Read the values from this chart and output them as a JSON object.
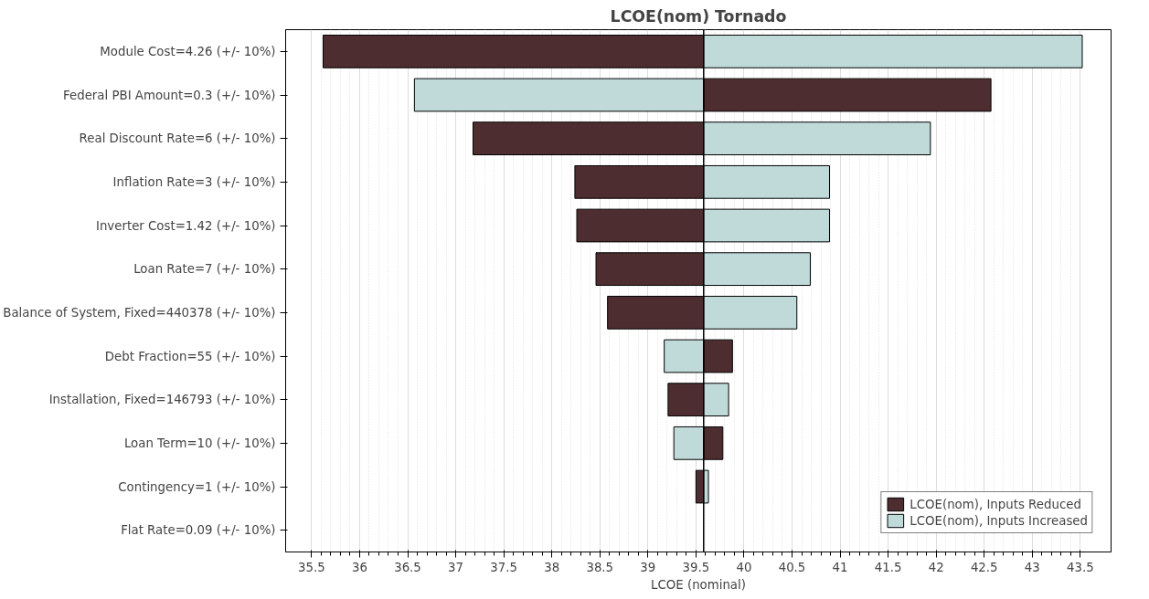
{
  "chart_data": {
    "type": "bar",
    "orientation": "horizontal",
    "title": "LCOE(nom) Tornado",
    "xlabel": "LCOE (nominal)",
    "categories": [
      "Module Cost=4.26 (+/- 10%)",
      "Federal PBI Amount=0.3 (+/- 10%)",
      "Real Discount Rate=6 (+/- 10%)",
      "Inflation Rate=3 (+/- 10%)",
      "Inverter Cost=1.42 (+/- 10%)",
      "Loan Rate=7 (+/- 10%)",
      "Balance of System, Fixed=440378 (+/- 10%)",
      "Debt Fraction=55 (+/- 10%)",
      "Installation, Fixed=146793 (+/- 10%)",
      "Loan Term=10 (+/- 10%)",
      "Contingency=1 (+/- 10%)",
      "Flat Rate=0.09 (+/- 10%)"
    ],
    "series": [
      {
        "name": "LCOE(nom), Inputs Reduced",
        "color": "#4e2d30",
        "base": [
          39.58,
          39.58,
          39.58,
          39.58,
          39.58,
          39.58,
          39.58,
          39.58,
          39.58,
          39.58,
          39.58,
          null
        ],
        "values": [
          -3.96,
          2.99,
          -2.4,
          -1.34,
          -1.32,
          -1.12,
          -1.0,
          0.3,
          -0.37,
          0.2,
          -0.08,
          null
        ]
      },
      {
        "name": "LCOE(nom), Inputs Increased",
        "color": "#c0dad9",
        "base": [
          39.58,
          39.58,
          39.58,
          39.58,
          39.58,
          39.58,
          39.58,
          39.58,
          39.58,
          39.58,
          39.58,
          null
        ],
        "values": [
          3.94,
          -3.01,
          2.36,
          1.31,
          1.31,
          1.11,
          0.97,
          -0.41,
          0.26,
          -0.31,
          0.05,
          null
        ]
      }
    ],
    "ref_lines": [
      {
        "axis": "x",
        "value": 39.58,
        "color": "#000000"
      }
    ],
    "xlim": [
      35.23,
      43.82
    ],
    "xticks": [
      35.5,
      36,
      36.5,
      37,
      37.5,
      38,
      38.5,
      39,
      39.5,
      40,
      40.5,
      41,
      41.5,
      42,
      42.5,
      43,
      43.5
    ],
    "grid": "x",
    "legend": "bottom right"
  }
}
